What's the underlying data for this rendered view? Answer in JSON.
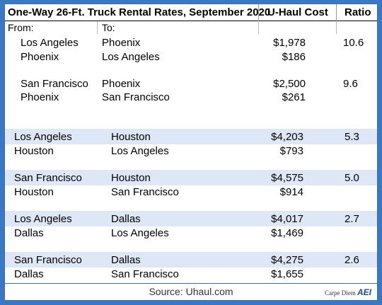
{
  "table": {
    "title": "One-Way 26-Ft. Truck Rental Rates, September 2020",
    "cost_header": "U-Haul Cost",
    "ratio_header": "Ratio",
    "from_header": "From:",
    "to_header": "To:",
    "rows": [
      {
        "from": "Los Angeles",
        "to": "Phoenix",
        "cost": "$1,978",
        "ratio": "10.6"
      },
      {
        "from": "Phoenix",
        "to": "Los Angeles",
        "cost": "$186",
        "ratio": ""
      },
      {
        "from": "San Francisco",
        "to": "Phoenix",
        "cost": "$2,500",
        "ratio": "9.6"
      },
      {
        "from": "Phoenix",
        "to": "San Francisco",
        "cost": "$261",
        "ratio": ""
      },
      {
        "from": "Los Angeles",
        "to": "Houston",
        "cost": "$4,203",
        "ratio": "5.3"
      },
      {
        "from": "Houston",
        "to": "Los Angeles",
        "cost": "$793",
        "ratio": ""
      },
      {
        "from": "San Francisco",
        "to": "Houston",
        "cost": "$4,575",
        "ratio": "5.0"
      },
      {
        "from": "Houston",
        "to": "San Francisco",
        "cost": "$914",
        "ratio": ""
      },
      {
        "from": "Los Angeles",
        "to": "Dallas",
        "cost": "$4,017",
        "ratio": "2.7"
      },
      {
        "from": "Dallas",
        "to": "Los Angeles",
        "cost": "$1,469",
        "ratio": ""
      },
      {
        "from": "San Francisco",
        "to": "Dallas",
        "cost": "$4,275",
        "ratio": "2.6"
      },
      {
        "from": "Dallas",
        "to": "San Francisco",
        "cost": "$1,655",
        "ratio": ""
      }
    ]
  },
  "footer": {
    "source": "Source: Uhaul.com",
    "brand_text": "Carpe Diem",
    "brand_logo": "AEI"
  },
  "colors": {
    "frame": "#3a78c4",
    "shaded_row": "#dde7f5"
  }
}
